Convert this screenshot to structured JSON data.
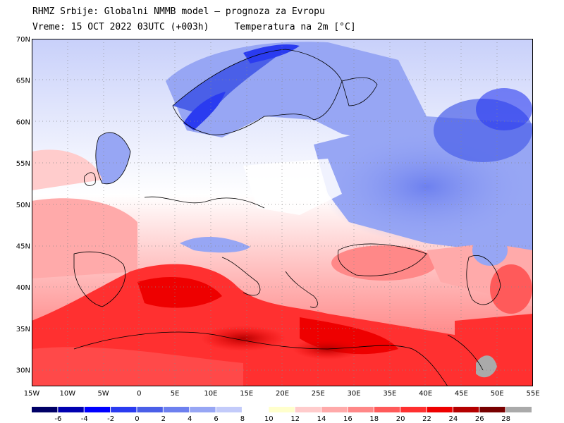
{
  "header": {
    "line1": "RHMZ Srbije: Globalni NMMB model — prognoza za Evropu",
    "line2_time": "Vreme: 15 OCT 2022 03UTC (+003h)",
    "line2_param": "Temperatura na 2m [°C]"
  },
  "map": {
    "lat_labels": [
      "70N",
      "65N",
      "60N",
      "55N",
      "50N",
      "45N",
      "40N",
      "35N",
      "30N"
    ],
    "lat_values": [
      70,
      65,
      60,
      55,
      50,
      45,
      40,
      35,
      30
    ],
    "lon_labels": [
      "15W",
      "10W",
      "5W",
      "0",
      "5E",
      "10E",
      "15E",
      "20E",
      "25E",
      "30E",
      "35E",
      "40E",
      "45E",
      "50E",
      "55E"
    ],
    "lon_values": [
      -15,
      -10,
      -5,
      0,
      5,
      10,
      15,
      20,
      25,
      30,
      35,
      40,
      45,
      50,
      55
    ],
    "lon_range": [
      -15,
      55
    ],
    "lat_range": [
      28,
      70
    ]
  },
  "legend": {
    "tick_labels": [
      "-6",
      "-4",
      "-2",
      "0",
      "2",
      "4",
      "6",
      "8",
      "10",
      "12",
      "14",
      "16",
      "18",
      "20",
      "22",
      "24",
      "26",
      "28"
    ],
    "colors": [
      "#000066",
      "#0000b0",
      "#0000ff",
      "#2a3bf0",
      "#4a5fe8",
      "#6d80ef",
      "#97a6f4",
      "#c3cbfa",
      "#ffffff",
      "#ffffcc",
      "#ffcccc",
      "#ffaaaa",
      "#ff8888",
      "#ff5a5a",
      "#ff3030",
      "#ee0000",
      "#b40000",
      "#780000",
      "#aaaaaa"
    ]
  }
}
